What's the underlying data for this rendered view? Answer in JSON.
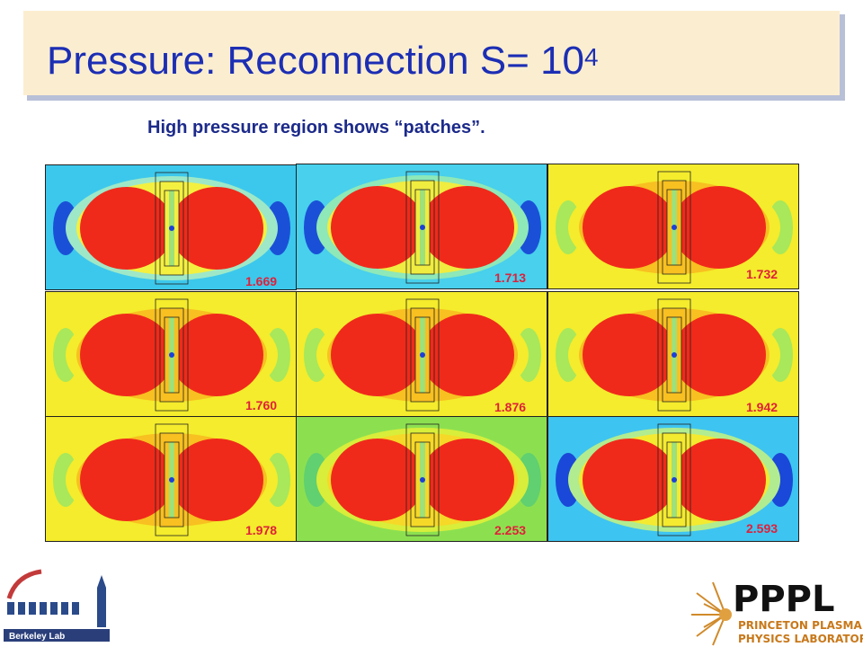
{
  "title": {
    "main": "Pressure: Reconnection S= 10",
    "exponent": "4"
  },
  "subtitle": "High pressure region shows “patches”.",
  "panels": [
    {
      "label": "1.669",
      "style": "cyan"
    },
    {
      "label": "1.713",
      "style": "cyan2"
    },
    {
      "label": "1.732",
      "style": "yellow"
    },
    {
      "label": "1.760",
      "style": "yellow"
    },
    {
      "label": "1.876",
      "style": "yellow"
    },
    {
      "label": "1.942",
      "style": "yellow"
    },
    {
      "label": "1.978",
      "style": "yellow"
    },
    {
      "label": "2.253",
      "style": "green"
    },
    {
      "label": "2.593",
      "style": "blue"
    }
  ],
  "logos": {
    "left": {
      "text": "Berkeley Lab",
      "icon": "berkeley-lab-logo"
    },
    "right": {
      "text": "PPPL",
      "line1": "PRINCETON PLASMA",
      "line2": "PHYSICS LABORATORY",
      "icon": "pppl-logo"
    }
  },
  "colors": {
    "title": "#1c2eb4",
    "subtitle": "#1c2a8a",
    "value_label": "#e0203a"
  }
}
